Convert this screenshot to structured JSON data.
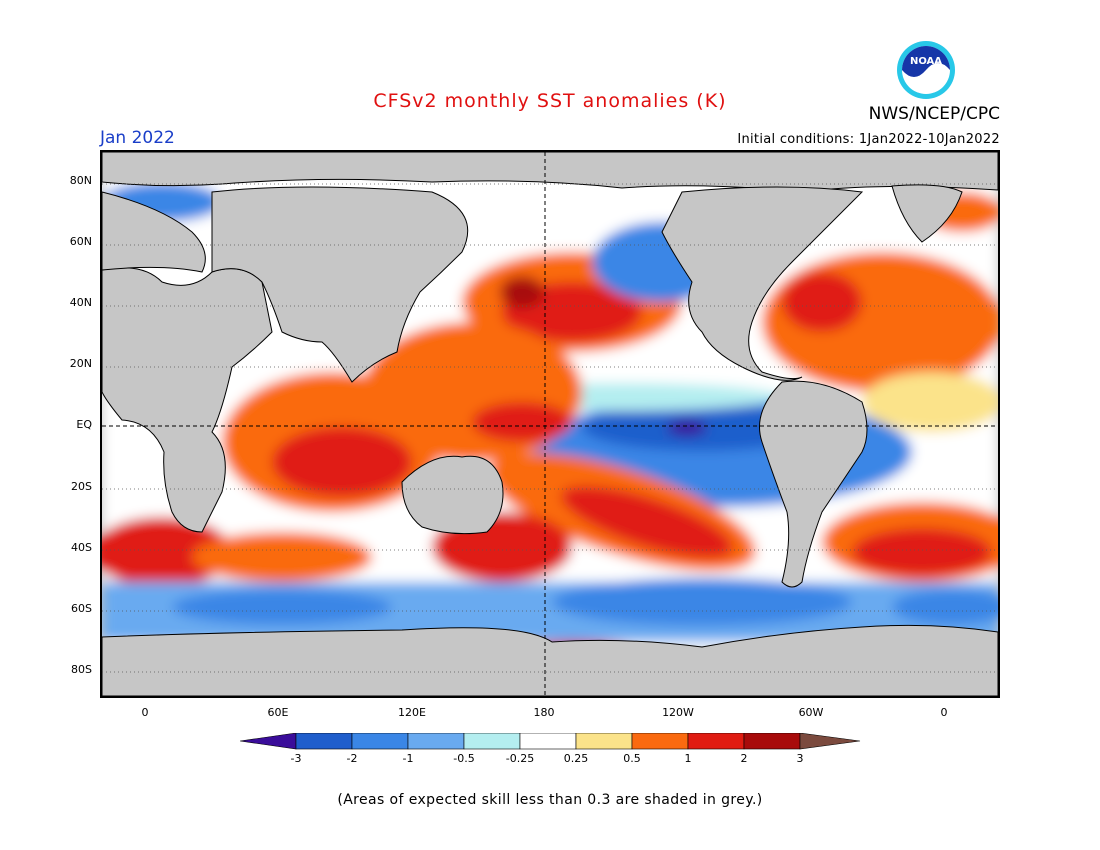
{
  "header": {
    "title": "CFSv2 monthly SST anomalies (K)",
    "month": "Jan 2022",
    "initial_conditions": "Initial conditions: 1Jan2022-10Jan2022",
    "agency": "NWS/NCEP/CPC",
    "logo_text": "NOAA"
  },
  "map": {
    "lat_labels": [
      "80N",
      "60N",
      "40N",
      "20N",
      "EQ",
      "20S",
      "40S",
      "60S",
      "80S"
    ],
    "lon_labels": [
      "0",
      "60E",
      "120E",
      "180",
      "120W",
      "60W",
      "0"
    ]
  },
  "colorbar": {
    "labels": [
      "-3",
      "-2",
      "-1",
      "-0.5",
      "-0.25",
      "0.25",
      "0.5",
      "1",
      "2",
      "3"
    ],
    "colors": [
      "#3a0d9a",
      "#1f5ecc",
      "#3a86e6",
      "#69aaf0",
      "#b4eef0",
      "#ffffff",
      "#fbe38a",
      "#fa6a10",
      "#e01c12",
      "#a80b0b",
      "#7b4a3e"
    ]
  },
  "footnote": "(Areas of expected skill less than 0.3 are shaded in grey.)"
}
